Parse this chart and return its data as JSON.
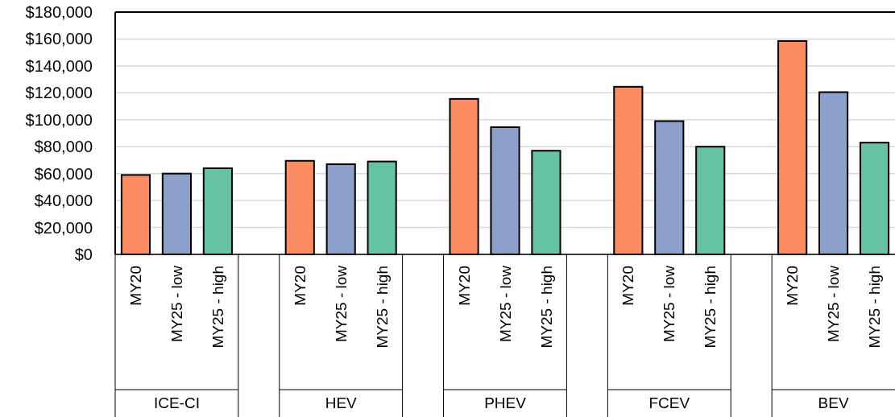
{
  "chart_data": {
    "type": "bar",
    "categories": [
      "MY20",
      "MY25 - low",
      "MY25 - high",
      null,
      "MY20",
      "MY25 - low",
      "MY25 - high",
      null,
      "MY20",
      "MY25 - low",
      "MY25 - high",
      null,
      "MY20",
      "MY25 - low",
      "MY25 - high",
      null,
      "MY20",
      "MY25 - low",
      "MY25 - high"
    ],
    "values": [
      59000,
      60000,
      64000,
      null,
      69500,
      67000,
      69000,
      null,
      115500,
      94500,
      77000,
      null,
      124500,
      99000,
      80000,
      null,
      158500,
      120500,
      83000
    ],
    "colors": [
      "#fc8d62",
      "#8da0cb",
      "#66c2a5",
      null,
      "#fc8d62",
      "#8da0cb",
      "#66c2a5",
      null,
      "#fc8d62",
      "#8da0cb",
      "#66c2a5",
      null,
      "#fc8d62",
      "#8da0cb",
      "#66c2a5",
      null,
      "#fc8d62",
      "#8da0cb",
      "#66c2a5"
    ],
    "annotations": [
      "ICE-CI",
      "HEV",
      "PHEV",
      "FCEV",
      "BEV"
    ],
    "ylim": [
      0,
      180000
    ],
    "yticks": [
      {
        "value": 0,
        "label": "$0"
      },
      {
        "value": 20000,
        "label": "$20,000"
      },
      {
        "value": 40000,
        "label": "$40,000"
      },
      {
        "value": 60000,
        "label": "$60,000"
      },
      {
        "value": 80000,
        "label": "$80,000"
      },
      {
        "value": 100000,
        "label": "$100,000"
      },
      {
        "value": 120000,
        "label": "$120,000"
      },
      {
        "value": 140000,
        "label": "$140,000"
      },
      {
        "value": 160000,
        "label": "$160,000"
      },
      {
        "value": 180000,
        "label": "$180,000"
      }
    ],
    "grid": true
  }
}
